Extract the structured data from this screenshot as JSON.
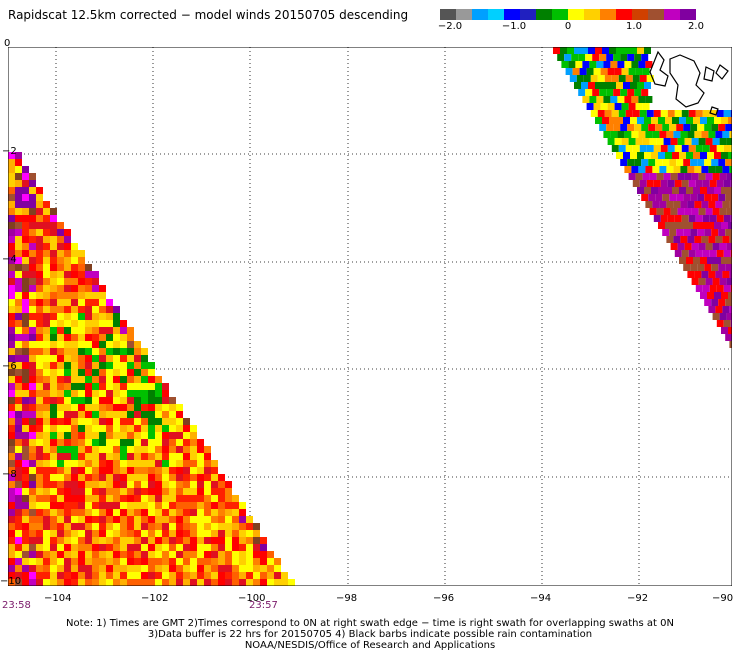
{
  "title": "Rapidscat 12.5km corrected − model winds 20150705 descending",
  "colorbar": {
    "colors": [
      "#555555",
      "#999999",
      "#00a0ff",
      "#00d0ff",
      "#0000ff",
      "#2020c0",
      "#008000",
      "#00c000",
      "#ffff00",
      "#ffd000",
      "#ff8000",
      "#ff0000",
      "#d04000",
      "#a05030",
      "#c000c0",
      "#8000a0"
    ],
    "ticks": [
      "−2.0",
      "−1.0",
      "0",
      "1.0",
      "2.0"
    ]
  },
  "axes": {
    "y_ticks": [
      "0",
      "−2",
      "−4",
      "−6",
      "−8",
      "−10"
    ],
    "x_ticks": [
      "−104",
      "−102",
      "−100",
      "−98",
      "−96",
      "−94",
      "−92",
      "−90"
    ]
  },
  "swath_times": {
    "left": "23:58",
    "right": "23:57"
  },
  "notes": {
    "line1": "Note: 1) Times are GMT 2)Times correspond to 0N at right swath edge − time is right swath for overlapping swaths at 0N",
    "line2": "3)Data buffer is 22 hrs for 20150705 4) Black barbs indicate possible rain contamination",
    "line3": "NOAA/NESDIS/Office of Research and Applications"
  }
}
